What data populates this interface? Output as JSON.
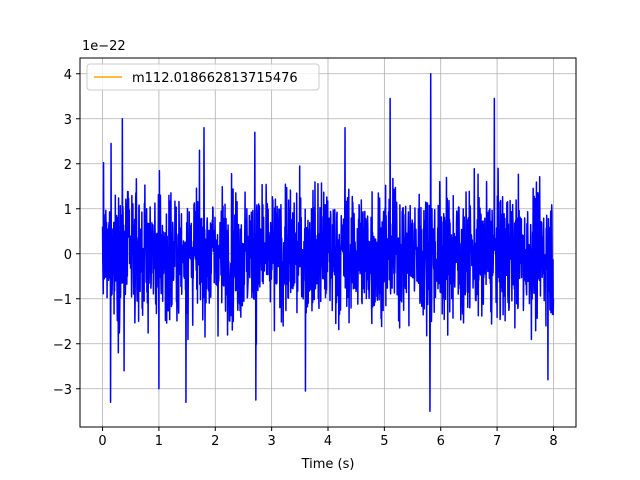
{
  "chart_data": {
    "type": "line",
    "title": "",
    "xlabel": "Time (s)",
    "ylabel": "",
    "y_multiplier_label": "1e−22",
    "xlim": [
      -0.4,
      8.4
    ],
    "ylim": [
      -3.85,
      4.35
    ],
    "x_ticks": [
      0,
      1,
      2,
      3,
      4,
      5,
      6,
      7,
      8
    ],
    "x_tick_labels": [
      "0",
      "1",
      "2",
      "3",
      "4",
      "5",
      "6",
      "7",
      "8"
    ],
    "y_ticks": [
      -3,
      -2,
      -1,
      0,
      1,
      2,
      3,
      4
    ],
    "y_tick_labels": [
      "−3",
      "−2",
      "−1",
      "0",
      "1",
      "2",
      "3",
      "4"
    ],
    "grid": true,
    "legend_placement": "top-left",
    "series": [
      {
        "name": "m112.018662813715476",
        "color": "#ffa500",
        "role": "legend-only",
        "x": [],
        "y": []
      },
      {
        "color": "#0000ff",
        "role": "noise",
        "x_range": [
          0,
          8
        ],
        "envelope_peak_count": 3,
        "peaks": [
          {
            "x": 0.15,
            "y": 2.45
          },
          {
            "x": 0.14,
            "y": -3.3
          },
          {
            "x": 0.35,
            "y": 3.0
          },
          {
            "x": 0.38,
            "y": -2.6
          },
          {
            "x": 1.0,
            "y": -3.0
          },
          {
            "x": 1.48,
            "y": -3.3
          },
          {
            "x": 1.8,
            "y": 2.8
          },
          {
            "x": 2.7,
            "y": 2.7
          },
          {
            "x": 2.72,
            "y": -3.25
          },
          {
            "x": 3.6,
            "y": -3.05
          },
          {
            "x": 4.3,
            "y": 2.8
          },
          {
            "x": 5.1,
            "y": 3.45
          },
          {
            "x": 5.82,
            "y": 4.0
          },
          {
            "x": 5.81,
            "y": -3.5
          },
          {
            "x": 6.95,
            "y": 3.45
          },
          {
            "x": 7.9,
            "y": -2.8
          }
        ]
      }
    ]
  }
}
